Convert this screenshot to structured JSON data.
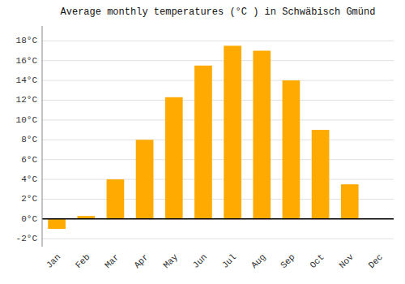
{
  "chart_data": {
    "type": "bar",
    "title": "Average monthly temperatures (°C ) in Schwäbisch Gmünd",
    "categories": [
      "Jan",
      "Feb",
      "Mar",
      "Apr",
      "May",
      "Jun",
      "Jul",
      "Aug",
      "Sep",
      "Oct",
      "Nov",
      "Dec"
    ],
    "values": [
      -1.0,
      0.3,
      4.0,
      8.0,
      12.3,
      15.5,
      17.5,
      17.0,
      14.0,
      9.0,
      3.5,
      0.0
    ],
    "color": "#FFAA00",
    "ylim": [
      -2.8,
      19.5
    ],
    "yticks": [
      {
        "value": -2,
        "label": "-2°C"
      },
      {
        "value": 0,
        "label": "0°C"
      },
      {
        "value": 2,
        "label": "2°C"
      },
      {
        "value": 4,
        "label": "4°C"
      },
      {
        "value": 6,
        "label": "6°C"
      },
      {
        "value": 8,
        "label": "8°C"
      },
      {
        "value": 10,
        "label": "10°C"
      },
      {
        "value": 12,
        "label": "12°C"
      },
      {
        "value": 14,
        "label": "14°C"
      },
      {
        "value": 16,
        "label": "16°C"
      },
      {
        "value": 18,
        "label": "18°C"
      }
    ],
    "grid": true
  }
}
